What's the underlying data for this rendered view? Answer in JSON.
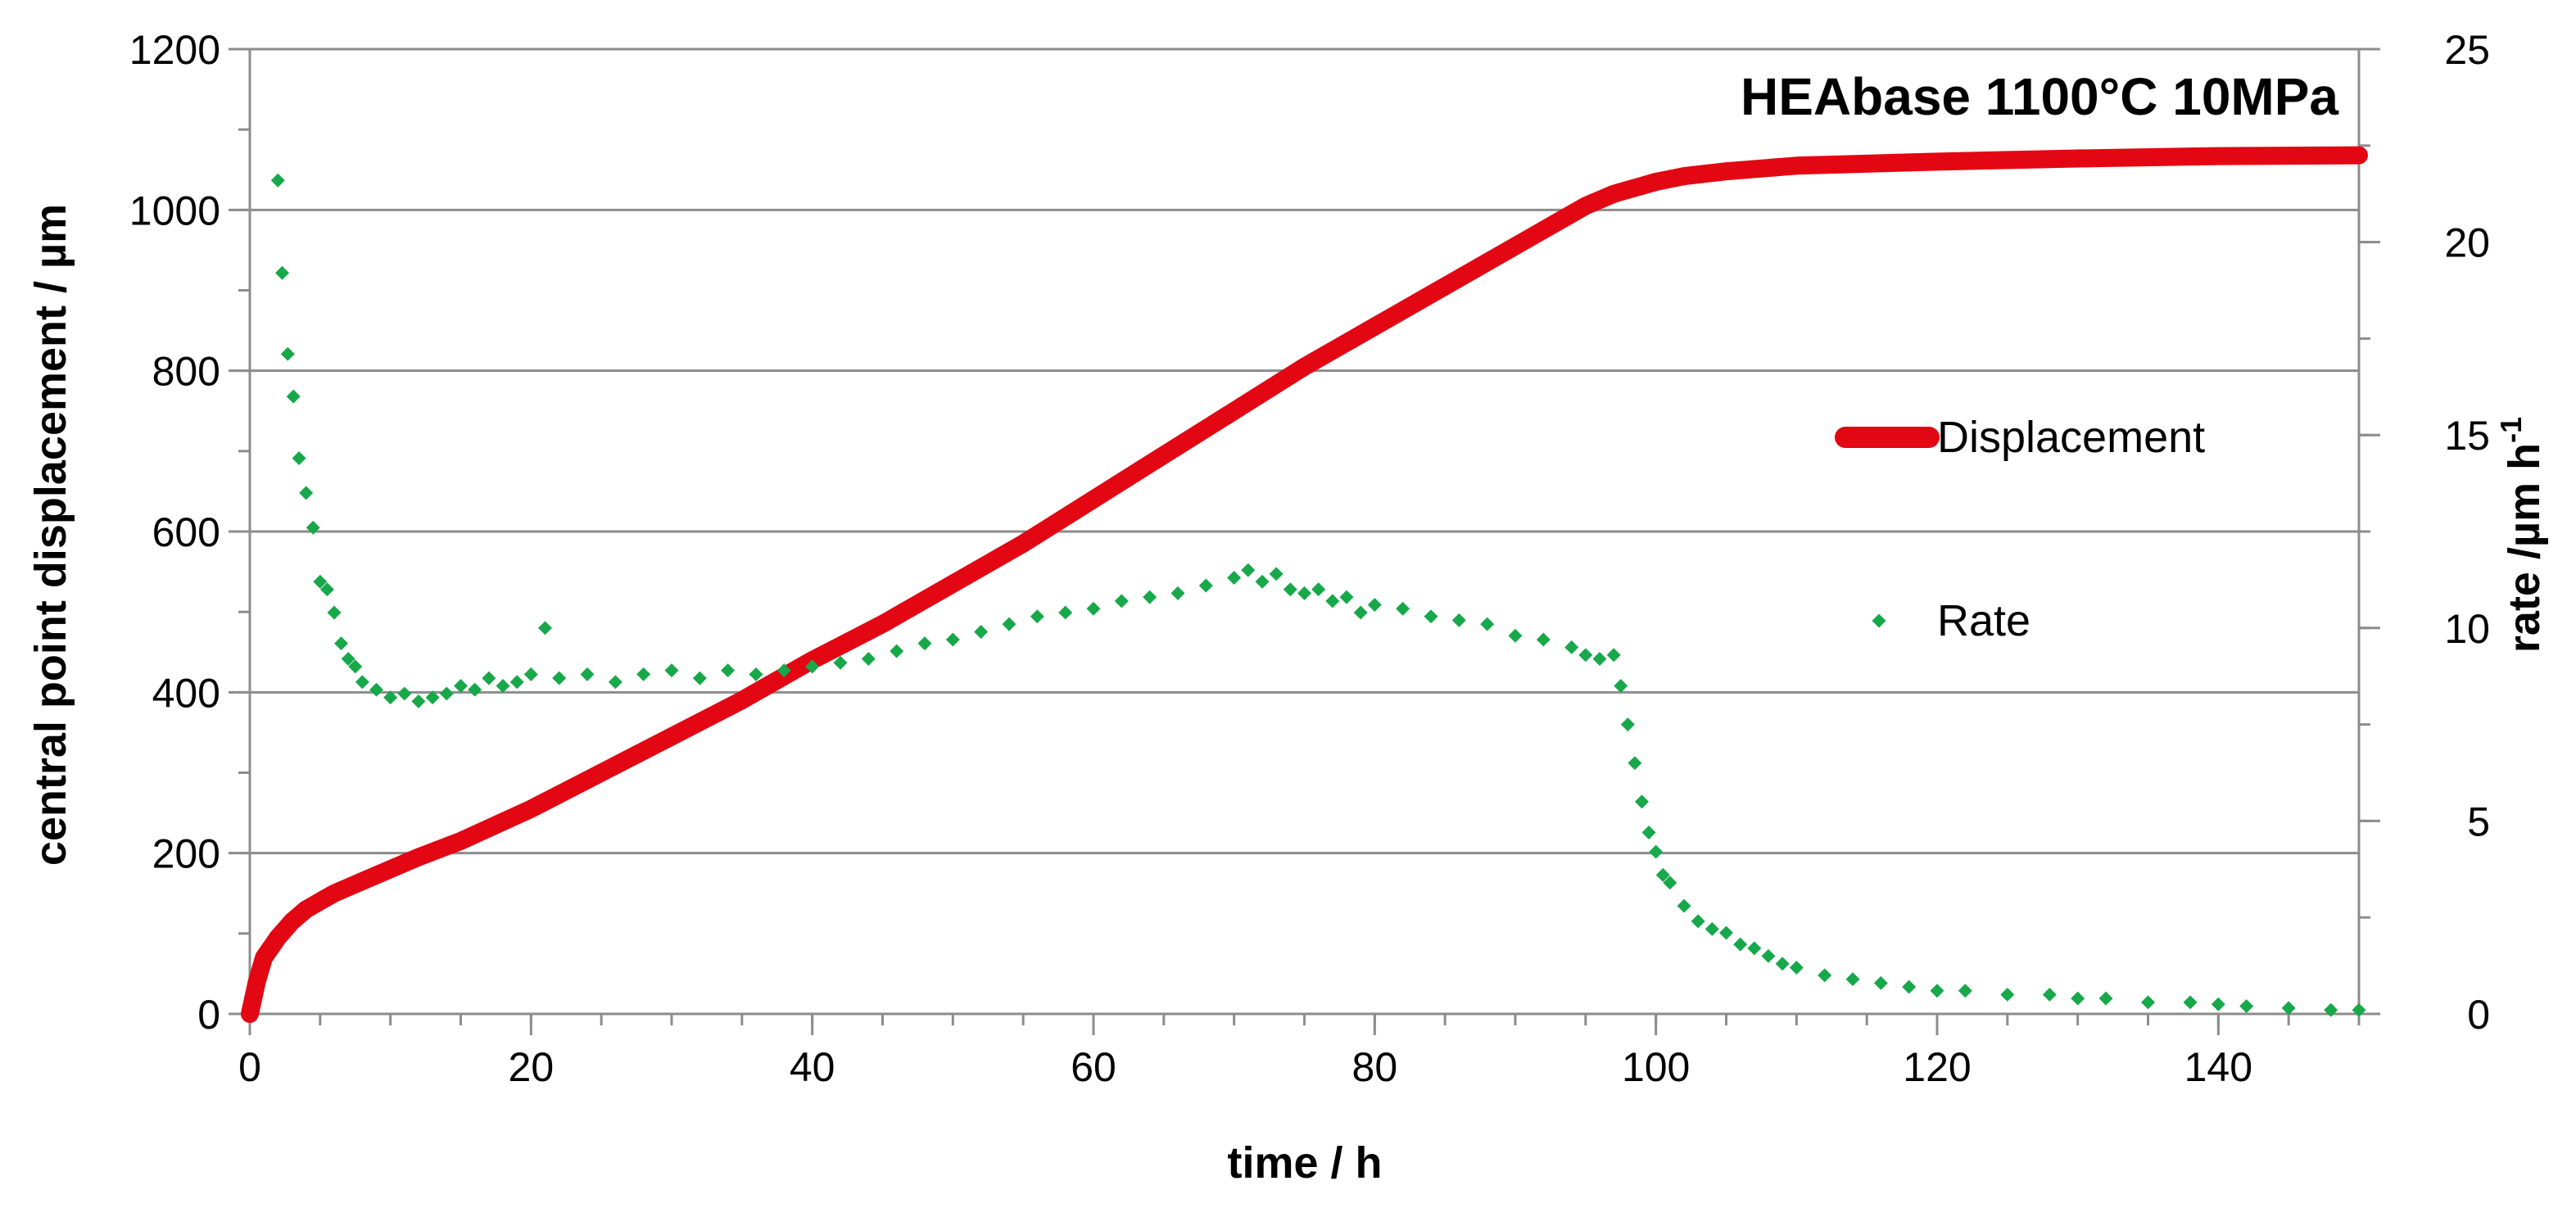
{
  "chart_data": {
    "type": "line",
    "title": "HEAbase 1100°C 10MPa",
    "xlabel": "time / h",
    "ylabel": "central point displacement / µm",
    "y2label_main": "rate /µm h",
    "y2label_sup": "-1",
    "xlim": [
      0,
      150
    ],
    "ylim": [
      0,
      1200
    ],
    "y2lim": [
      0,
      25
    ],
    "xticks": [
      0,
      20,
      40,
      60,
      80,
      100,
      120,
      140
    ],
    "yticks": [
      0,
      200,
      400,
      600,
      800,
      1000,
      1200
    ],
    "y2ticks": [
      0,
      5,
      10,
      15,
      20,
      25
    ],
    "grid": "horizontal",
    "legend_position": "right",
    "series": [
      {
        "name": "Displacement",
        "axis": "left",
        "style": "line",
        "color": "#e30613",
        "x": [
          0,
          0.5,
          1,
          2,
          3,
          4,
          5,
          6,
          8,
          10,
          12,
          15,
          20,
          25,
          30,
          35,
          40,
          45,
          50,
          55,
          60,
          65,
          70,
          75,
          80,
          85,
          90,
          95,
          97,
          99,
          100,
          102,
          105,
          110,
          120,
          130,
          140,
          150
        ],
        "y": [
          0,
          40,
          70,
          95,
          115,
          130,
          140,
          150,
          165,
          180,
          195,
          215,
          255,
          300,
          345,
          390,
          440,
          485,
          535,
          585,
          640,
          695,
          750,
          805,
          855,
          905,
          955,
          1005,
          1020,
          1030,
          1035,
          1042,
          1048,
          1055,
          1060,
          1064,
          1067,
          1068
        ]
      },
      {
        "name": "Rate",
        "axis": "right",
        "style": "scatter",
        "color": "#17a84a",
        "x": [
          2,
          2.3,
          2.7,
          3.1,
          3.5,
          4,
          4.5,
          5,
          5.5,
          6,
          6.5,
          7,
          7.5,
          8,
          9,
          10,
          11,
          12,
          13,
          14,
          15,
          16,
          17,
          18,
          19,
          20,
          21,
          22,
          24,
          26,
          28,
          30,
          32,
          34,
          36,
          38,
          40,
          42,
          44,
          46,
          48,
          50,
          52,
          54,
          56,
          58,
          60,
          62,
          64,
          66,
          68,
          70,
          71,
          72,
          73,
          74,
          75,
          76,
          77,
          78,
          79,
          80,
          82,
          84,
          86,
          88,
          90,
          92,
          94,
          95,
          96,
          97,
          97.5,
          98,
          98.5,
          99,
          99.5,
          100,
          100.5,
          101,
          102,
          103,
          104,
          105,
          106,
          107,
          108,
          109,
          110,
          112,
          114,
          116,
          118,
          120,
          122,
          125,
          128,
          130,
          132,
          135,
          138,
          140,
          142,
          145,
          148,
          150
        ],
        "y": [
          21.6,
          19.2,
          17.1,
          16.0,
          14.4,
          13.5,
          12.6,
          11.2,
          11.0,
          10.4,
          9.6,
          9.2,
          9.0,
          8.6,
          8.4,
          8.2,
          8.3,
          8.1,
          8.2,
          8.3,
          8.5,
          8.4,
          8.7,
          8.5,
          8.6,
          8.8,
          10.0,
          8.7,
          8.8,
          8.6,
          8.8,
          8.9,
          8.7,
          8.9,
          8.8,
          8.9,
          9.0,
          9.1,
          9.2,
          9.4,
          9.6,
          9.7,
          9.9,
          10.1,
          10.3,
          10.4,
          10.5,
          10.7,
          10.8,
          10.9,
          11.1,
          11.3,
          11.5,
          11.2,
          11.4,
          11.0,
          10.9,
          11.0,
          10.7,
          10.8,
          10.4,
          10.6,
          10.5,
          10.3,
          10.2,
          10.1,
          9.8,
          9.7,
          9.5,
          9.3,
          9.2,
          9.3,
          8.5,
          7.5,
          6.5,
          5.5,
          4.7,
          4.2,
          3.6,
          3.4,
          2.8,
          2.4,
          2.2,
          2.1,
          1.8,
          1.7,
          1.5,
          1.3,
          1.2,
          1.0,
          0.9,
          0.8,
          0.7,
          0.6,
          0.6,
          0.5,
          0.5,
          0.4,
          0.4,
          0.3,
          0.3,
          0.25,
          0.2,
          0.15,
          0.1,
          0.1
        ]
      }
    ]
  }
}
